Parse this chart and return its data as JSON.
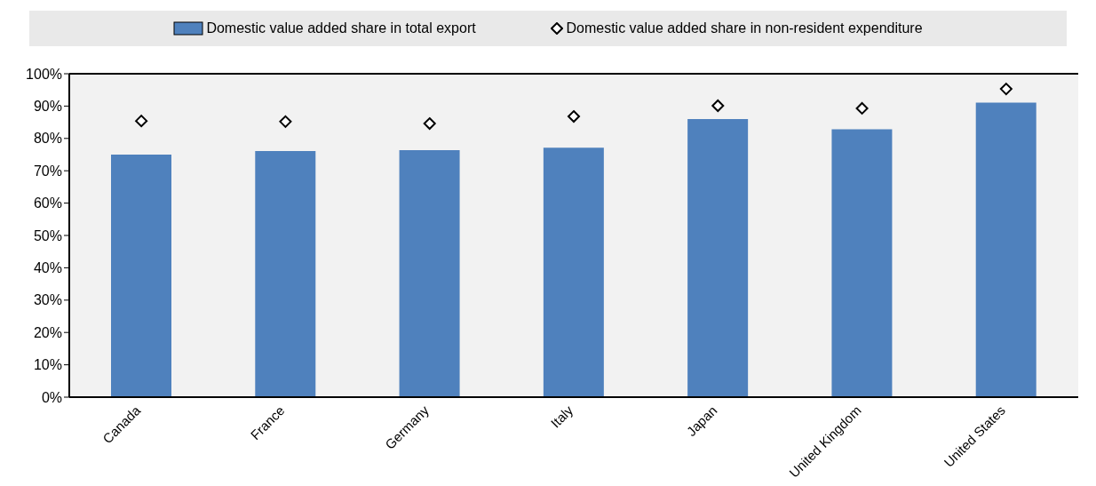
{
  "chart_data": {
    "type": "bar",
    "categories": [
      "Canada",
      "France",
      "Germany",
      "Italy",
      "Japan",
      "United Kingdom",
      "United States"
    ],
    "series": [
      {
        "name": "Domestic value added share in total export",
        "color": "#4f81bd",
        "values": [
          75.0,
          76.1,
          76.4,
          77.1,
          86.0,
          82.8,
          91.1
        ]
      },
      {
        "name": "Domestic value added share in non-resident expenditure",
        "type": "scatter",
        "color": "#000000",
        "marker": "diamond",
        "values": [
          85.4,
          85.2,
          84.6,
          86.8,
          90.1,
          89.3,
          95.3
        ]
      }
    ],
    "ylim": [
      0,
      100
    ],
    "yticks": [
      {
        "value": 0,
        "label": "0%"
      },
      {
        "value": 10,
        "label": "10%"
      },
      {
        "value": 20,
        "label": "20%"
      },
      {
        "value": 30,
        "label": "30%"
      },
      {
        "value": 40,
        "label": "40%"
      },
      {
        "value": 50,
        "label": "50%"
      },
      {
        "value": 60,
        "label": "60%"
      },
      {
        "value": 70,
        "label": "70%"
      },
      {
        "value": 80,
        "label": "80%"
      },
      {
        "value": 90,
        "label": "90%"
      },
      {
        "value": 100,
        "label": "100%"
      }
    ],
    "grid": false,
    "legend": "top"
  }
}
